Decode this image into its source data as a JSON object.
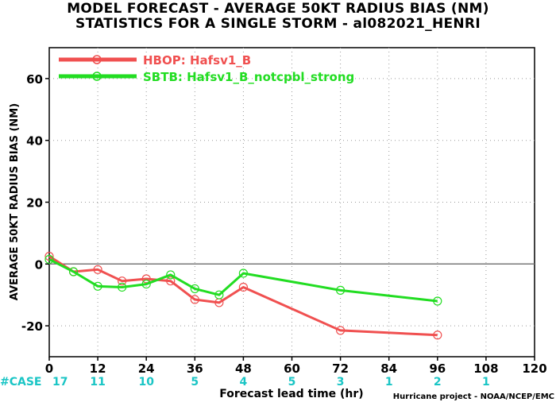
{
  "chart_data": {
    "type": "line",
    "title": "MODEL FORECAST - AVERAGE 50KT RADIUS BIAS (NM)",
    "subtitle": "STATISTICS FOR A SINGLE STORM - al082021_HENRI",
    "xlabel": "Forecast lead time (hr)",
    "ylabel": "AVERAGE 50KT RADIUS BIAS (NM)",
    "xlim": [
      0,
      120
    ],
    "ylim": [
      -30,
      70
    ],
    "xticks": [
      0,
      12,
      24,
      36,
      48,
      60,
      72,
      84,
      96,
      108,
      120
    ],
    "yticks": [
      -20,
      0,
      20,
      40,
      60
    ],
    "grid": true,
    "legend_position": "top-left",
    "case_label": "#CASE",
    "case_counts": [
      {
        "x": 0,
        "n": "17"
      },
      {
        "x": 12,
        "n": "11"
      },
      {
        "x": 24,
        "n": "10"
      },
      {
        "x": 36,
        "n": "5"
      },
      {
        "x": 48,
        "n": "4"
      },
      {
        "x": 60,
        "n": "5"
      },
      {
        "x": 72,
        "n": "3"
      },
      {
        "x": 84,
        "n": "1"
      },
      {
        "x": 96,
        "n": "2"
      },
      {
        "x": 108,
        "n": "1"
      }
    ],
    "series": [
      {
        "name": "HBOP: Hafsv1_B",
        "color": "#f05050",
        "x": [
          0,
          6,
          12,
          18,
          24,
          30,
          36,
          42,
          48,
          72,
          96
        ],
        "y": [
          2.5,
          -2.5,
          -1.8,
          -5.5,
          -4.8,
          -5.5,
          -11.5,
          -12.5,
          -7.5,
          -21.5,
          -23
        ]
      },
      {
        "name": "SBTB: Hafsv1_B_notcpbl_strong",
        "color": "#22dd22",
        "x": [
          0,
          6,
          12,
          18,
          24,
          30,
          36,
          42,
          48,
          72,
          96
        ],
        "y": [
          1.5,
          -2.5,
          -7.2,
          -7.5,
          -6.5,
          -3.5,
          -8,
          -10,
          -3,
          -8.5,
          -12
        ]
      }
    ]
  },
  "credit": "Hurricane project - NOAA/NCEP/EMC"
}
